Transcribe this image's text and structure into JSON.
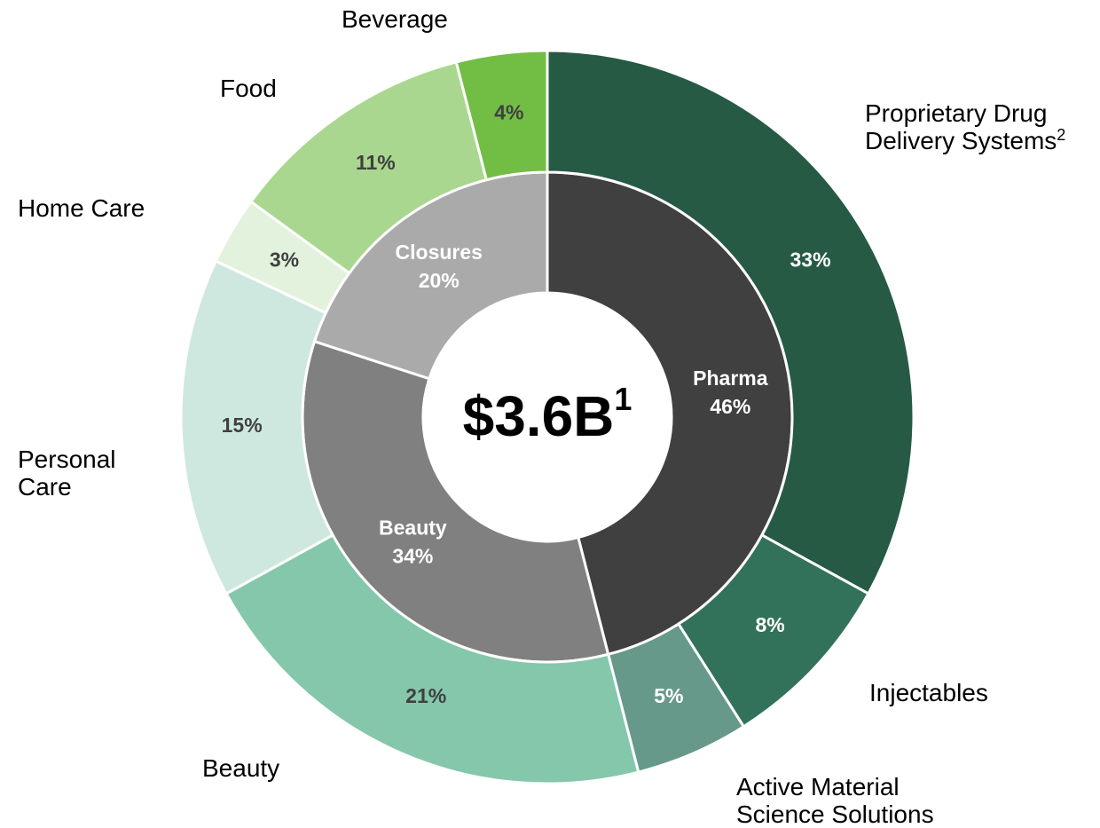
{
  "chart_data": {
    "type": "donut",
    "center_label": "$3.6B",
    "center_note": "1",
    "rings": [
      {
        "categories": [
          "Pharma",
          "Beauty",
          "Closures"
        ],
        "values": [
          46,
          34,
          20
        ],
        "value_labels": [
          "46%",
          "34%",
          "20%"
        ],
        "colors": [
          "#404040",
          "#808080",
          "#aaaaaa"
        ]
      },
      {
        "categories": [
          "Proprietary Drug Delivery Systems",
          "Injectables",
          "Active Material Science Solutions",
          "Beauty",
          "Personal Care",
          "Home Care",
          "Food",
          "Beverage"
        ],
        "category_notes": [
          "2",
          null,
          null,
          null,
          null,
          null,
          null,
          null
        ],
        "values": [
          33,
          8,
          5,
          21,
          15,
          3,
          11,
          4
        ],
        "value_labels": [
          "33%",
          "8%",
          "5%",
          "21%",
          "15%",
          "3%",
          "11%",
          "4%"
        ],
        "colors": [
          "#265a45",
          "#33725a",
          "#66998a",
          "#85c7ab",
          "#cfe8df",
          "#e3f2dc",
          "#a9d78f",
          "#72bd44"
        ]
      }
    ]
  }
}
